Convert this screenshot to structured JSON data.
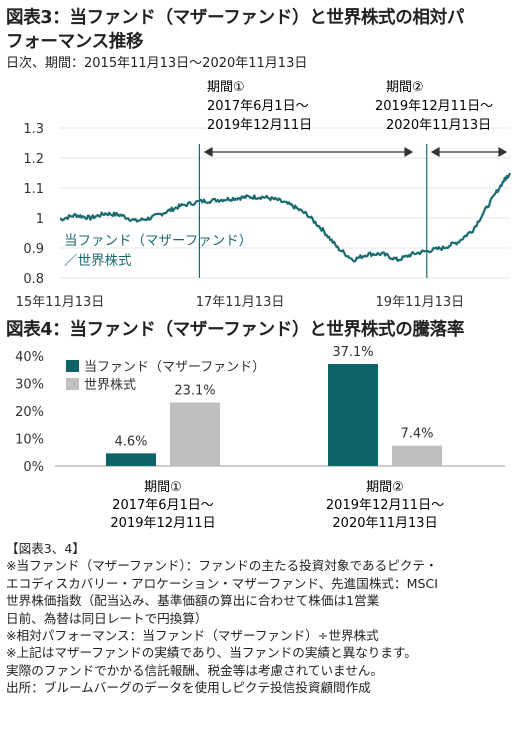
{
  "fig3": {
    "title_line1": "図表3：当ファンド（マザーファンド）と世界株式の相対パ",
    "title_line2": "フォーマンス推移",
    "subtitle": "日次、期間：2015年11月13日～2020年11月13日",
    "period1_label": "期間①",
    "period1_range_l1": "2017年6月1日～",
    "period1_range_l2": "2019年12月11日",
    "period2_label": "期間②",
    "period2_range_l1": "2019年12月11日～",
    "period2_range_l2": "2020年11月13日",
    "series_label_l1": "当ファンド（マザーファンド）",
    "series_label_l2": "／世界株式",
    "line_color": "#1a6b70"
  },
  "fig4": {
    "title": "図表4：当ファンド（マザーファンド）と世界株式の騰落率",
    "group1_l1": "期間①",
    "group1_l2": "2017年6月1日～",
    "group1_l3": "2019年12月11日",
    "group2_l1": "期間②",
    "group2_l2": "2019年12月11日～",
    "group2_l3": "2020年11月13日",
    "fund_color": "#0f6469",
    "world_color": "#bfbfbf"
  },
  "chart_data": [
    {
      "type": "line",
      "title": "図表3：当ファンド（マザーファンド）と世界株式の相対パフォーマンス推移",
      "ylim": [
        0.8,
        1.3
      ],
      "yticks": [
        0.8,
        0.9,
        1.0,
        1.1,
        1.2,
        1.3
      ],
      "ytick_labels": [
        "0.8",
        "0.9",
        "1",
        "1.1",
        "1.2",
        "1.3"
      ],
      "xlim": [
        "2015-11-13",
        "2020-11-13"
      ],
      "xtick_labels": [
        {
          "x": "2015-11-13",
          "label": "15年11月13日"
        },
        {
          "x": "2017-11-13",
          "label": "17年11月13日"
        },
        {
          "x": "2019-11-13",
          "label": "19年11月13日"
        }
      ],
      "period_markers": [
        "2017-06-01",
        "2019-12-11"
      ],
      "series": [
        {
          "name": "当ファンド（マザーファンド）／世界株式",
          "x": [
            "2015-11-13",
            "2016-01-15",
            "2016-03-15",
            "2016-05-15",
            "2016-07-15",
            "2016-09-15",
            "2016-11-15",
            "2017-01-15",
            "2017-03-15",
            "2017-06-01",
            "2017-08-15",
            "2017-10-15",
            "2017-12-15",
            "2018-02-15",
            "2018-04-15",
            "2018-06-15",
            "2018-08-15",
            "2018-10-15",
            "2018-12-15",
            "2019-02-15",
            "2019-04-15",
            "2019-06-15",
            "2019-08-15",
            "2019-10-15",
            "2019-12-11",
            "2020-02-15",
            "2020-04-15",
            "2020-06-15",
            "2020-08-15",
            "2020-10-15",
            "2020-11-13"
          ],
          "values": [
            0.995,
            1.01,
            1.0,
            1.015,
            1.01,
            0.99,
            1.0,
            1.02,
            1.04,
            1.055,
            1.06,
            1.065,
            1.07,
            1.07,
            1.06,
            1.04,
            1.01,
            0.96,
            0.9,
            0.86,
            0.88,
            0.88,
            0.86,
            0.88,
            0.89,
            0.9,
            0.92,
            0.96,
            1.04,
            1.12,
            1.15
          ]
        }
      ]
    },
    {
      "type": "bar",
      "title": "図表4：当ファンド（マザーファンド）と世界株式の騰落率",
      "categories": [
        "期間①",
        "期間②"
      ],
      "ylim": [
        0,
        40
      ],
      "yticks": [
        0,
        10,
        20,
        30,
        40
      ],
      "ytick_labels": [
        "0%",
        "10%",
        "20%",
        "30%",
        "40%"
      ],
      "series": [
        {
          "name": "当ファンド（マザーファンド）",
          "values": [
            4.6,
            37.1
          ],
          "labels": [
            "4.6%",
            "37.1%"
          ]
        },
        {
          "name": "世界株式",
          "values": [
            23.1,
            7.4
          ],
          "labels": [
            "23.1%",
            "7.4%"
          ]
        }
      ]
    }
  ],
  "notes": {
    "head": "【図表3、4】",
    "lines": [
      "※当ファンド（マザーファンド）：ファンドの主たる投資対象であるピクテ・",
      "エコディスカバリー・アロケーション・マザーファンド、先進国株式：MSCI",
      "世界株価指数（配当込み、基準価額の算出に合わせて株価は1営業",
      "日前、為替は同日レートで円換算）",
      "※相対パフォーマンス：当ファンド（マザーファンド）÷世界株式",
      "※上記はマザーファンドの実績であり、当ファンドの実績と異なります。",
      "実際のファンドでかかる信託報酬、税金等は考慮されていません。",
      "出所：ブルームバーグのデータを使用しピクテ投信投資顧問作成"
    ]
  }
}
